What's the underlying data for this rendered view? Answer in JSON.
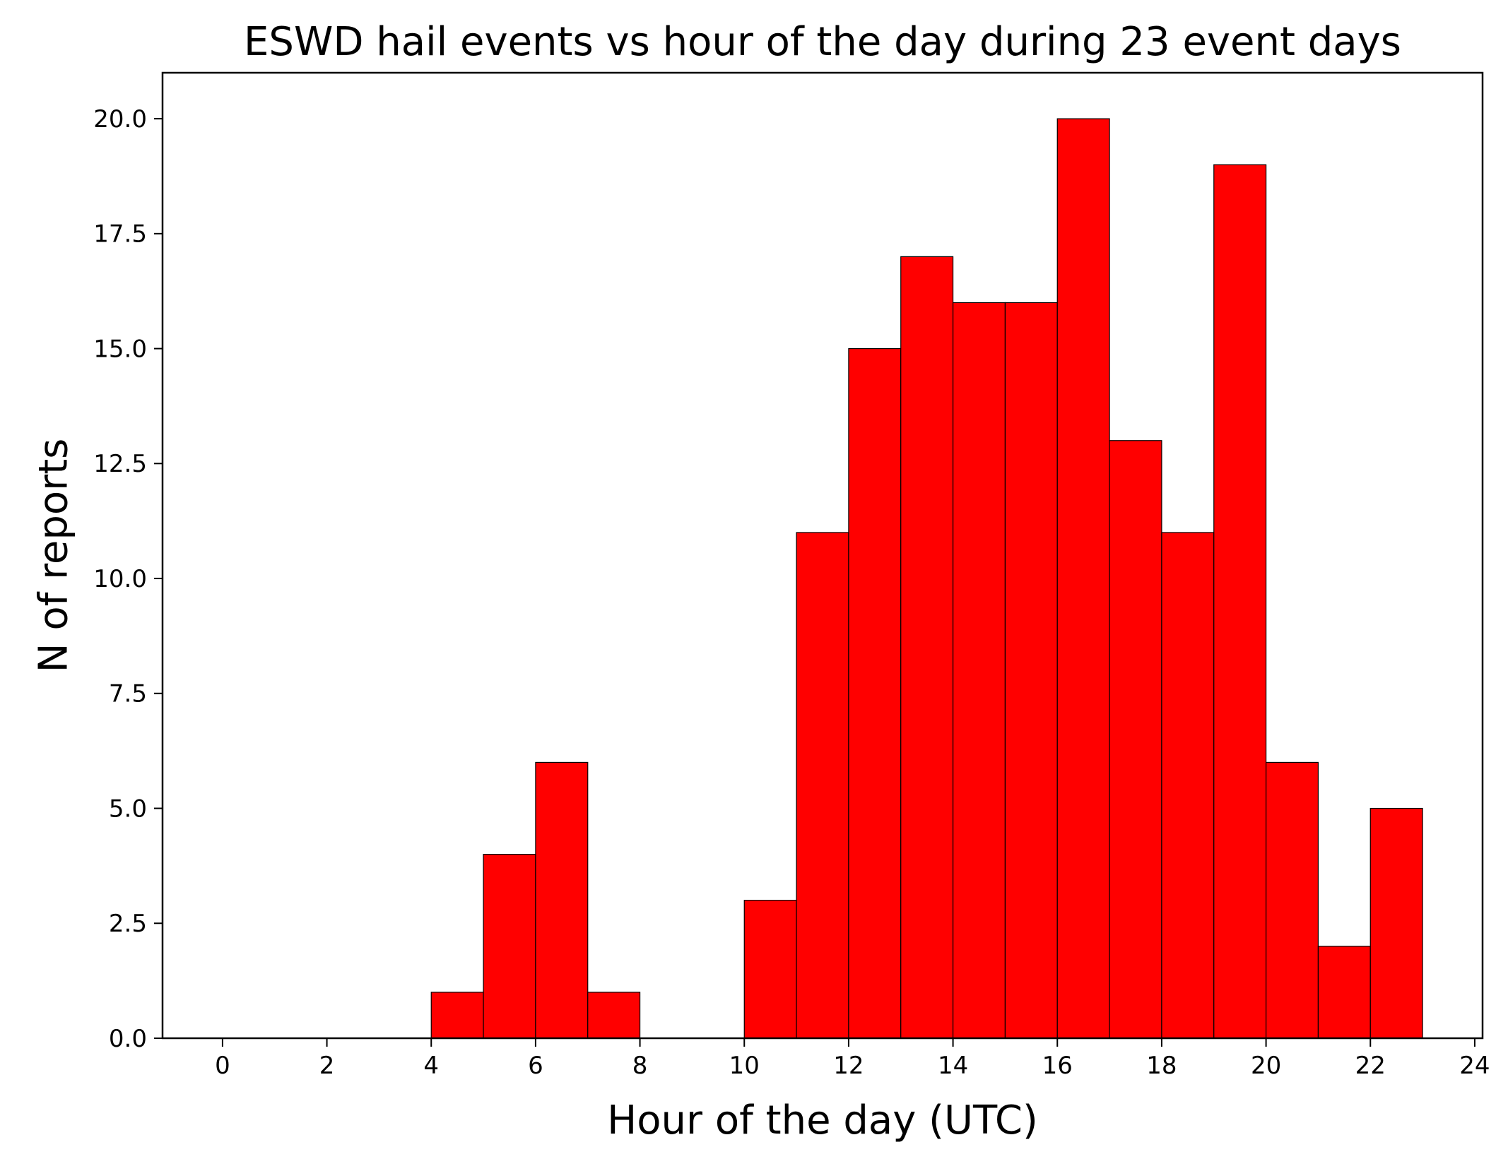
{
  "chart_data": {
    "type": "bar",
    "title": "ESWD hail events vs hour of the day during 23 event days",
    "xlabel": "Hour of the day (UTC)",
    "ylabel": "N of reports",
    "bins": [
      {
        "start": 0,
        "end": 1,
        "value": 0
      },
      {
        "start": 1,
        "end": 2,
        "value": 0
      },
      {
        "start": 2,
        "end": 3,
        "value": 0
      },
      {
        "start": 3,
        "end": 4,
        "value": 0
      },
      {
        "start": 4,
        "end": 5,
        "value": 1
      },
      {
        "start": 5,
        "end": 6,
        "value": 4
      },
      {
        "start": 6,
        "end": 7,
        "value": 6
      },
      {
        "start": 7,
        "end": 8,
        "value": 1
      },
      {
        "start": 8,
        "end": 9,
        "value": 0
      },
      {
        "start": 9,
        "end": 10,
        "value": 0
      },
      {
        "start": 10,
        "end": 11,
        "value": 3
      },
      {
        "start": 11,
        "end": 12,
        "value": 11
      },
      {
        "start": 12,
        "end": 13,
        "value": 15
      },
      {
        "start": 13,
        "end": 14,
        "value": 17
      },
      {
        "start": 14,
        "end": 15,
        "value": 16
      },
      {
        "start": 15,
        "end": 16,
        "value": 16
      },
      {
        "start": 16,
        "end": 17,
        "value": 20
      },
      {
        "start": 17,
        "end": 18,
        "value": 13
      },
      {
        "start": 18,
        "end": 19,
        "value": 11
      },
      {
        "start": 19,
        "end": 20,
        "value": 19
      },
      {
        "start": 20,
        "end": 21,
        "value": 6
      },
      {
        "start": 21,
        "end": 22,
        "value": 2
      },
      {
        "start": 22,
        "end": 23,
        "value": 5
      }
    ],
    "xlim": [
      -1.15,
      24.15
    ],
    "ylim": [
      0,
      21
    ],
    "xticks": [
      0,
      2,
      4,
      6,
      8,
      10,
      12,
      14,
      16,
      18,
      20,
      22,
      24
    ],
    "xtick_labels": [
      "0",
      "2",
      "4",
      "6",
      "8",
      "10",
      "12",
      "14",
      "16",
      "18",
      "20",
      "22",
      "24"
    ],
    "yticks": [
      0,
      2.5,
      5,
      7.5,
      10,
      12.5,
      15,
      17.5,
      20
    ],
    "ytick_labels": [
      "0.0",
      "2.5",
      "5.0",
      "7.5",
      "10.0",
      "12.5",
      "15.0",
      "17.5",
      "20.0"
    ],
    "bar_color": "#ff0000",
    "edge_color": "#000000",
    "grid": false,
    "legend": "none"
  }
}
